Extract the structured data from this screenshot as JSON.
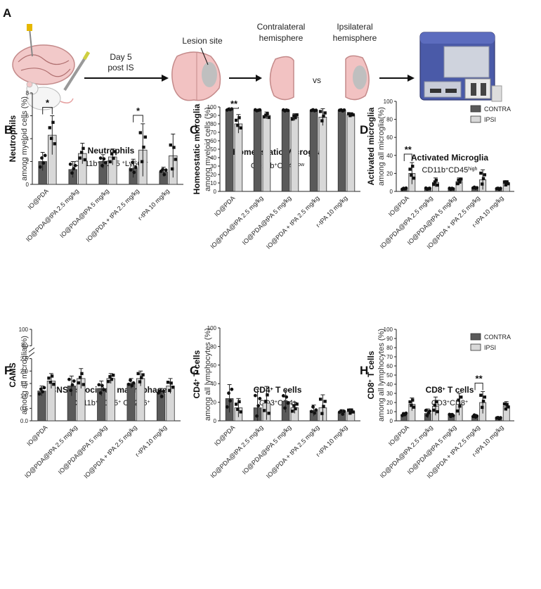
{
  "panel_a": {
    "letter": "A",
    "day_label_1": "Day 5",
    "day_label_2": "post IS",
    "lesion_label": "Lesion site",
    "contra_label_1": "Contralateral",
    "contra_label_2": "hemisphere",
    "ipsi_label_1": "Ipsilateral",
    "ipsi_label_2": "hemisphere",
    "vs_label": "vs"
  },
  "legend": {
    "contra": "CONTRA",
    "ipsi": "IPSI"
  },
  "colors": {
    "contra": "#5a5a5a",
    "ipsi": "#d8d8d8"
  },
  "chart_data": [
    {
      "id": "B",
      "letter": "B",
      "type": "bar",
      "title": "Neutrophils",
      "subtitle_parts": [
        {
          "t": "CD11b"
        },
        {
          "t": "+",
          "sup": true
        },
        {
          "t": "CD45  "
        },
        {
          "t": "+",
          "sup": true
        },
        {
          "t": "Ly6G "
        },
        {
          "t": "+",
          "sup": true
        }
      ],
      "ylabel_main": "Neutrophils",
      "ylabel_sub": "among myeloid cells (%)",
      "ylim": [
        0,
        8
      ],
      "yticks": [
        "0",
        "2",
        "4",
        "6",
        "8"
      ],
      "ytick_values": [
        0,
        2,
        4,
        6,
        8
      ],
      "categories": [
        "IO@PDA",
        "IO@PDA@tPA 2.5 mg/kg",
        "IO@PDA@tPA 5 mg/kg",
        "IO@PDA + tPA 2.5 mg/kg",
        "r-tPA 10 mg/kg"
      ],
      "series": [
        {
          "name": "CONTRA",
          "values": [
            2.0,
            1.3,
            2.0,
            1.4,
            1.1
          ],
          "errors": [
            0.8,
            0.7,
            0.6,
            0.8,
            0.4
          ]
        },
        {
          "name": "IPSI",
          "values": [
            4.3,
            2.7,
            2.4,
            3.0,
            2.5
          ],
          "errors": [
            1.7,
            0.9,
            0.7,
            2.3,
            1.9
          ]
        }
      ],
      "significance": [
        {
          "category": "IO@PDA",
          "label": "*"
        },
        {
          "category": "IO@PDA + tPA 2.5 mg/kg",
          "label": "*"
        }
      ],
      "legend": false
    },
    {
      "id": "C",
      "letter": "C",
      "type": "bar",
      "title": "Homeostatic Microglia",
      "subtitle_parts": [
        {
          "t": "CD11b"
        },
        {
          "t": "+",
          "sup": true
        },
        {
          "t": "CD45"
        },
        {
          "t": "low",
          "sup": true
        }
      ],
      "ylabel_main": "Homeostatic microglia",
      "ylabel_sub": "among myeloid cells (%)",
      "ylim": [
        0,
        100
      ],
      "yticks": [
        "0",
        "10",
        "20",
        "30",
        "40",
        "50",
        "60",
        "70",
        "80",
        "90",
        "100"
      ],
      "ytick_values": [
        0,
        10,
        20,
        30,
        40,
        50,
        60,
        70,
        80,
        90,
        100
      ],
      "categories": [
        "IO@PDA",
        "IO@PDA@tPA 2.5 mg/kg",
        "IO@PDA@tPA 5 mg/kg",
        "IO@PDA + tPA 2.5 mg/kg",
        "r-tPA 10 mg/kg"
      ],
      "series": [
        {
          "name": "CONTRA",
          "values": [
            97,
            96,
            96,
            96,
            96
          ],
          "errors": [
            1,
            1,
            1,
            1,
            1
          ]
        },
        {
          "name": "IPSI",
          "values": [
            80,
            90,
            88,
            88,
            91
          ],
          "errors": [
            11,
            4,
            4,
            10,
            2
          ]
        }
      ],
      "significance": [
        {
          "category": "IO@PDA",
          "label": "**"
        }
      ],
      "legend": false
    },
    {
      "id": "D",
      "letter": "D",
      "type": "bar",
      "title": "Activated Microglia",
      "subtitle_parts": [
        {
          "t": "CD11b"
        },
        {
          "t": "+",
          "sup": true
        },
        {
          "t": "CD45"
        },
        {
          "t": "high",
          "sup": true
        }
      ],
      "ylabel_main": "Activated microglia",
      "ylabel_sub": "among all microglia(%)",
      "ylim": [
        0,
        100
      ],
      "yticks": [
        "0",
        "20",
        "40",
        "60",
        "80",
        "100"
      ],
      "ytick_values": [
        0,
        20,
        40,
        60,
        80,
        100
      ],
      "categories": [
        "IO@PDA",
        "IO@PDA@tPA 2.5 mg/kg",
        "IO@PDA@tPA 5 mg/kg",
        "IO@PDA + tPA 2.5 mg/kg",
        "r-tPA 10 mg/kg"
      ],
      "series": [
        {
          "name": "CONTRA",
          "values": [
            3,
            3,
            3,
            4,
            3
          ],
          "errors": [
            1,
            1,
            1,
            1,
            1
          ]
        },
        {
          "name": "IPSI",
          "values": [
            20,
            10,
            11,
            13,
            9
          ],
          "errors": [
            12,
            5,
            4,
            11,
            3
          ]
        }
      ],
      "significance": [
        {
          "category": "IO@PDA",
          "label": "**"
        }
      ],
      "legend": true
    },
    {
      "id": "F",
      "letter": "F",
      "type": "bar",
      "title": "CNS-associated macrophages",
      "subtitle_parts": [
        {
          "t": "CD11b"
        },
        {
          "t": "+",
          "sup": true
        },
        {
          "t": "CD45"
        },
        {
          "t": "+",
          "sup": true
        },
        {
          "t": "  CD206"
        },
        {
          "t": "+",
          "sup": true
        }
      ],
      "ylabel_main": "CAMS",
      "ylabel_sub": "among all microglia(%)",
      "ylim": [
        0,
        2.5
      ],
      "axis_break": true,
      "yticks": [
        "0.0",
        "0.5",
        "1.0",
        "1.5",
        "2.0",
        "2.5",
        "80",
        "100"
      ],
      "ytick_values": [
        0,
        0.5,
        1.0,
        1.5,
        2.0,
        2.5,
        80,
        100
      ],
      "categories": [
        "IO@PDA",
        "IO@PDA@tPA 2.5 mg/kg",
        "IO@PDA@tPA 5 mg/kg",
        "IO@PDA + tPA 2.5 mg/kg",
        "r-tPA 10 mg/kg"
      ],
      "series": [
        {
          "name": "CONTRA",
          "values": [
            1.2,
            1.4,
            1.3,
            1.5,
            1.1
          ],
          "errors": [
            0.2,
            0.4,
            0.3,
            0.2,
            0.2
          ]
        },
        {
          "name": "IPSI",
          "values": [
            1.6,
            1.7,
            1.7,
            1.7,
            1.4
          ],
          "errors": [
            0.3,
            0.4,
            0.2,
            0.3,
            0.3
          ]
        }
      ],
      "significance": [],
      "legend": false
    },
    {
      "id": "G",
      "letter": "G",
      "type": "bar",
      "title_parts": [
        {
          "t": "CD4"
        },
        {
          "t": "+",
          "sup": true
        },
        {
          "t": " T cells"
        }
      ],
      "subtitle_parts": [
        {
          "t": "CD3"
        },
        {
          "t": "+",
          "sup": true
        },
        {
          "t": "CD4"
        },
        {
          "t": "+",
          "sup": true
        }
      ],
      "ylabel_main_parts": [
        {
          "t": "CD4"
        },
        {
          "t": "+",
          "sup": true
        },
        {
          "t": " T cells"
        }
      ],
      "ylabel_sub": "among all lymphocytes (%)",
      "ylim": [
        0,
        100
      ],
      "yticks": [
        "0",
        "20",
        "40",
        "60",
        "80",
        "100"
      ],
      "ytick_values": [
        0,
        20,
        40,
        60,
        80,
        100
      ],
      "categories": [
        "IO@PDA",
        "IO@PDA@tPA 2.5 mg/kg",
        "IO@PDA@tPA 5 mg/kg",
        "IO@PDA + tPA 2.5 mg/kg",
        "r-tPA 10 mg/kg"
      ],
      "series": [
        {
          "name": "CONTRA",
          "values": [
            24,
            14,
            21,
            11,
            9
          ],
          "errors": [
            15,
            20,
            12,
            6,
            3
          ]
        },
        {
          "name": "IPSI",
          "values": [
            14,
            19,
            14,
            14,
            10
          ],
          "errors": [
            10,
            18,
            6,
            14,
            3
          ]
        }
      ],
      "significance": [],
      "legend": false
    },
    {
      "id": "H",
      "letter": "H",
      "type": "bar",
      "title_parts": [
        {
          "t": "CD8"
        },
        {
          "t": "+",
          "sup": true
        },
        {
          "t": " T cells"
        }
      ],
      "subtitle_parts": [
        {
          "t": "CD3"
        },
        {
          "t": "+",
          "sup": true
        },
        {
          "t": "CD8"
        },
        {
          "t": "+",
          "sup": true
        }
      ],
      "ylabel_main_parts": [
        {
          "t": "CD8"
        },
        {
          "t": "+",
          "sup": true
        },
        {
          "t": " T cells"
        }
      ],
      "ylabel_sub": "among all lymphocytes (%)",
      "ylim": [
        0,
        100
      ],
      "yticks": [
        "0",
        "10",
        "20",
        "30",
        "40",
        "50",
        "60",
        "70",
        "80",
        "90",
        "100"
      ],
      "ytick_values": [
        0,
        10,
        20,
        30,
        40,
        50,
        60,
        70,
        80,
        90,
        100
      ],
      "categories": [
        "IO@PDA",
        "IO@PDA@tPA 2.5 mg/kg",
        "IO@PDA@tPA 5 mg/kg",
        "IO@PDA + tPA 2.5 mg/kg",
        "r-tPA 10 mg/kg"
      ],
      "series": [
        {
          "name": "CONTRA",
          "values": [
            7,
            8,
            6,
            5,
            3
          ],
          "errors": [
            2,
            5,
            2,
            2,
            1
          ]
        },
        {
          "name": "IPSI",
          "values": [
            18,
            16,
            18,
            20,
            16
          ],
          "errors": [
            7,
            10,
            12,
            12,
            5
          ]
        }
      ],
      "significance": [
        {
          "category": "IO@PDA + tPA 2.5 mg/kg",
          "label": "**"
        }
      ],
      "legend": true
    }
  ]
}
